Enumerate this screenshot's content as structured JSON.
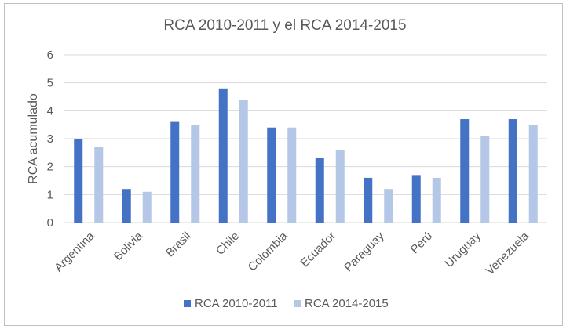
{
  "chart_data": {
    "type": "bar",
    "title": "RCA 2010-2011 y el RCA 2014-2015",
    "ylabel": "RCA acumulado",
    "xlabel": "",
    "ylim": [
      0,
      6
    ],
    "yticks": [
      0,
      1,
      2,
      3,
      4,
      5,
      6
    ],
    "grid": true,
    "legend_position": "bottom",
    "categories": [
      "Argentina",
      "Bolivia",
      "Brasil",
      "Chile",
      "Colombia",
      "Ecuador",
      "Paraguay",
      "Perú",
      "Uruguay",
      "Venezuela"
    ],
    "series": [
      {
        "name": "RCA 2010-2011",
        "color": "#4472c4",
        "values": [
          3.0,
          1.2,
          3.6,
          4.8,
          3.4,
          2.3,
          1.6,
          1.7,
          3.7,
          3.7
        ]
      },
      {
        "name": "RCA 2014-2015",
        "color": "#b4c7e7",
        "values": [
          2.7,
          1.1,
          3.5,
          4.4,
          3.4,
          2.6,
          1.2,
          1.6,
          3.1,
          3.5
        ]
      }
    ]
  }
}
